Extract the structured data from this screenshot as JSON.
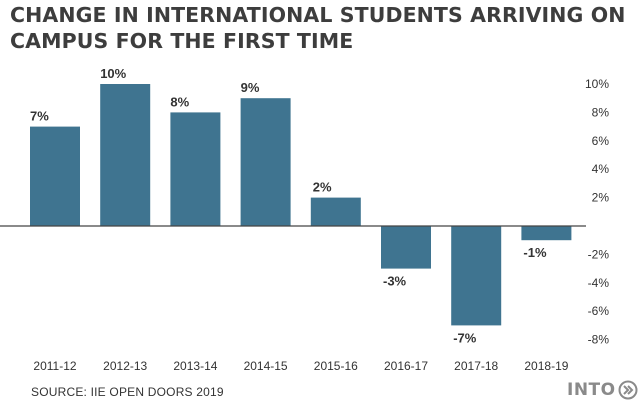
{
  "title": {
    "line1": "CHANGE IN INTERNATIONAL STUDENTS ARRIVING ON",
    "line2": "CAMPUS FOR THE FIRST TIME"
  },
  "source": "SOURCE: IIE OPEN DOORS 2019",
  "logo": {
    "text": "INTO",
    "icon": "double-chevron-right-icon"
  },
  "colors": {
    "bar": "#3f7490",
    "axis": "#444444",
    "text": "#333333"
  },
  "chart_data": {
    "type": "bar",
    "title": "CHANGE IN INTERNATIONAL STUDENTS ARRIVING ON CAMPUS FOR THE FIRST TIME",
    "categories": [
      "2011-12",
      "2012-13",
      "2013-14",
      "2014-15",
      "2015-16",
      "2016-17",
      "2017-18",
      "2018-19"
    ],
    "values": [
      7,
      10,
      8,
      9,
      2,
      -3,
      -7,
      -1
    ],
    "data_labels": [
      "7%",
      "10%",
      "8%",
      "9%",
      "2%",
      "-3%",
      "-7%",
      "-1%"
    ],
    "unit": "%",
    "ylim": [
      -8,
      10
    ],
    "yticks": [
      {
        "value": 10,
        "label": "10%"
      },
      {
        "value": 8,
        "label": "8%"
      },
      {
        "value": 6,
        "label": "6%"
      },
      {
        "value": 4,
        "label": "4%"
      },
      {
        "value": 2,
        "label": "2%"
      },
      {
        "value": -2,
        "label": "-2%"
      },
      {
        "value": -4,
        "label": "-4%"
      },
      {
        "value": -6,
        "label": "-6%"
      },
      {
        "value": -8,
        "label": "-8%"
      }
    ],
    "y_axis_side": "right",
    "grid": false,
    "legend": "none"
  }
}
